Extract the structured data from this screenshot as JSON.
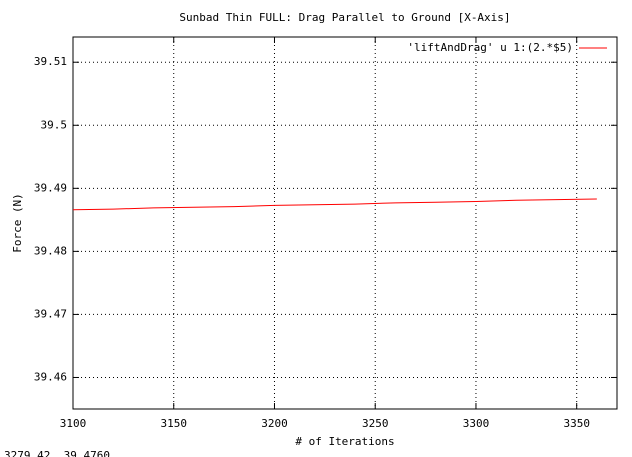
{
  "chart_data": {
    "type": "line",
    "title": "Sunbad Thin FULL: Drag Parallel to Ground [X-Axis]",
    "x_label": "# of Iterations",
    "y_label": "Force (N)",
    "x": [
      3100,
      3120,
      3140,
      3160,
      3180,
      3200,
      3220,
      3240,
      3260,
      3280,
      3300,
      3320,
      3340,
      3360
    ],
    "series": [
      {
        "name": "'liftAndDrag' u 1:(2.*$5)",
        "color": "#ff0000",
        "values": [
          39.4866,
          39.4867,
          39.4869,
          39.487,
          39.4871,
          39.4873,
          39.4874,
          39.4875,
          39.4877,
          39.4878,
          39.4879,
          39.4881,
          39.4882,
          39.4883
        ]
      }
    ],
    "xlim": [
      3100,
      3370
    ],
    "ylim": [
      39.455,
      39.514
    ],
    "xticks": [
      3100,
      3150,
      3200,
      3250,
      3300,
      3350
    ],
    "yticks": [
      39.46,
      39.47,
      39.48,
      39.49,
      39.5,
      39.51
    ],
    "grid": true,
    "legend": "top-right",
    "mouse_position": "3279.42,   39.4760"
  }
}
